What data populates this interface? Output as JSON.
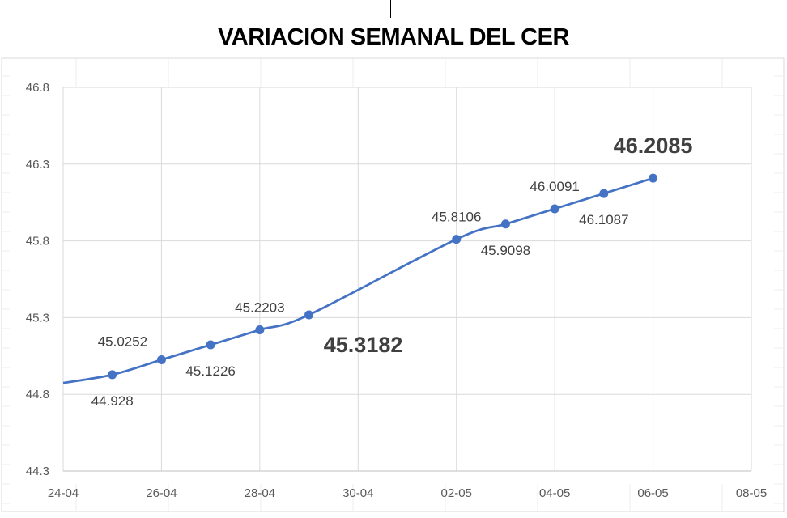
{
  "chart_data": {
    "type": "line",
    "title": "VARIACION SEMANAL DEL CER",
    "xlabel": "",
    "ylabel": "",
    "x_tick_labels": [
      "24-04",
      "26-04",
      "28-04",
      "30-04",
      "02-05",
      "04-05",
      "06-05",
      "08-05"
    ],
    "y_tick_labels": [
      "46.8",
      "46.3",
      "45.8",
      "45.3",
      "44.8",
      "44.3"
    ],
    "ylim": [
      44.3,
      46.8
    ],
    "xlim": [
      "24-04",
      "08-05"
    ],
    "grid": true,
    "series": [
      {
        "color": "#4472C4",
        "points": [
          {
            "x": "25-04",
            "y": 44.928,
            "label": "44.928",
            "label_pos": "below"
          },
          {
            "x": "26-04",
            "y": 45.0252,
            "label": "45.0252",
            "label_pos": "above-left"
          },
          {
            "x": "27-04",
            "y": 45.1226,
            "label": "45.1226",
            "label_pos": "below"
          },
          {
            "x": "28-04",
            "y": 45.2203,
            "label": "45.2203",
            "label_pos": "above"
          },
          {
            "x": "29-04",
            "y": 45.3182,
            "label": "45.3182",
            "label_pos": "below-right",
            "emphasis": true
          },
          {
            "x": "02-05",
            "y": 45.8106,
            "label": "45.8106",
            "label_pos": "above"
          },
          {
            "x": "03-05",
            "y": 45.9098,
            "label": "45.9098",
            "label_pos": "below"
          },
          {
            "x": "04-05",
            "y": 46.0091,
            "label": "46.0091",
            "label_pos": "above"
          },
          {
            "x": "05-05",
            "y": 46.1087,
            "label": "46.1087",
            "label_pos": "below"
          },
          {
            "x": "06-05",
            "y": 46.2085,
            "label": "46.2085",
            "label_pos": "above",
            "emphasis": true
          }
        ]
      }
    ]
  }
}
